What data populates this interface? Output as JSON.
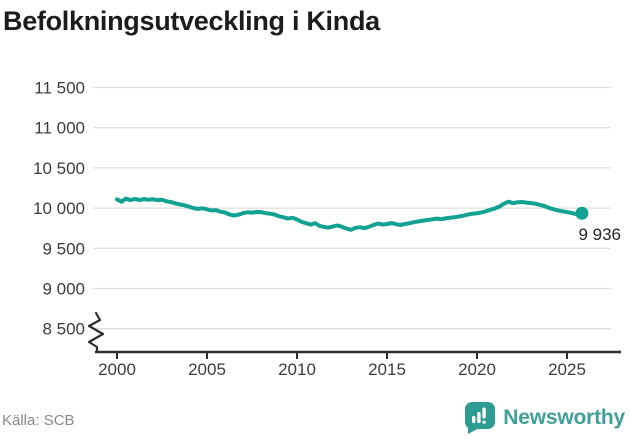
{
  "title": "Befolkningsutveckling i Kinda",
  "source": "Källa: SCB",
  "branding": {
    "name": "Newsworthy",
    "icon": "newsworthy-speech-bubble-bar-chart-icon",
    "wordmark_color": "#3F9F99",
    "icon_color": "#2F9C93"
  },
  "chart_data": {
    "type": "line",
    "title": "Befolkningsutveckling i Kinda",
    "xlabel": "",
    "ylabel": "",
    "grid": "horizontal",
    "axis_break_at_bottom": true,
    "line_color": "#12A294",
    "gridline_color": "#dedede",
    "axis_color": "#2e2e2e",
    "tick_label_color": "#3d3d3d",
    "end_label": "9 936",
    "end_value": 9936,
    "ylim": [
      8500,
      11500
    ],
    "xlim": [
      1998.7,
      2027.9
    ],
    "y_ticks": [
      11500,
      11000,
      10500,
      10000,
      9500,
      9000,
      8500
    ],
    "y_tick_labels": [
      "11 500",
      "11 000",
      "10 500",
      "10 000",
      "9 500",
      "9 000",
      "8 500"
    ],
    "x_ticks": [
      2000,
      2005,
      2010,
      2015,
      2020,
      2025
    ],
    "x_tick_labels": [
      "2000",
      "2005",
      "2010",
      "2015",
      "2020",
      "2025"
    ],
    "series": [
      {
        "name": "Befolkning i Kinda",
        "color": "#12A294",
        "x": [
          2000.0,
          2000.25,
          2000.5,
          2000.75,
          2001.0,
          2001.25,
          2001.5,
          2001.75,
          2002.0,
          2002.25,
          2002.5,
          2002.75,
          2003.0,
          2003.25,
          2003.5,
          2003.75,
          2004.0,
          2004.25,
          2004.5,
          2004.75,
          2005.0,
          2005.25,
          2005.5,
          2005.75,
          2006.0,
          2006.25,
          2006.5,
          2006.75,
          2007.0,
          2007.25,
          2007.5,
          2007.75,
          2008.0,
          2008.25,
          2008.5,
          2008.75,
          2009.0,
          2009.25,
          2009.5,
          2009.75,
          2010.0,
          2010.25,
          2010.5,
          2010.75,
          2011.0,
          2011.25,
          2011.5,
          2011.75,
          2012.0,
          2012.25,
          2012.5,
          2012.75,
          2013.0,
          2013.25,
          2013.5,
          2013.75,
          2014.0,
          2014.25,
          2014.5,
          2014.75,
          2015.0,
          2015.25,
          2015.5,
          2015.75,
          2016.0,
          2016.25,
          2016.5,
          2016.75,
          2017.0,
          2017.25,
          2017.5,
          2017.75,
          2018.0,
          2018.25,
          2018.5,
          2018.75,
          2019.0,
          2019.25,
          2019.5,
          2019.75,
          2020.0,
          2020.25,
          2020.5,
          2020.75,
          2021.0,
          2021.25,
          2021.5,
          2021.75,
          2022.0,
          2022.25,
          2022.5,
          2022.75,
          2023.0,
          2023.25,
          2023.5,
          2023.75,
          2024.0,
          2024.25,
          2024.5,
          2024.75,
          2025.0,
          2025.25,
          2025.5,
          2025.83
        ],
        "values": [
          10110,
          10080,
          10120,
          10100,
          10115,
          10100,
          10112,
          10105,
          10110,
          10098,
          10105,
          10085,
          10075,
          10058,
          10045,
          10035,
          10018,
          10000,
          9990,
          9998,
          9985,
          9970,
          9975,
          9955,
          9945,
          9920,
          9908,
          9918,
          9938,
          9948,
          9944,
          9952,
          9950,
          9938,
          9930,
          9920,
          9898,
          9885,
          9870,
          9880,
          9858,
          9830,
          9812,
          9795,
          9812,
          9780,
          9765,
          9758,
          9772,
          9785,
          9768,
          9745,
          9730,
          9755,
          9762,
          9750,
          9768,
          9790,
          9808,
          9795,
          9802,
          9815,
          9800,
          9790,
          9802,
          9812,
          9825,
          9835,
          9845,
          9852,
          9860,
          9870,
          9862,
          9872,
          9880,
          9886,
          9895,
          9906,
          9920,
          9930,
          9936,
          9945,
          9960,
          9980,
          9996,
          10020,
          10055,
          10080,
          10062,
          10072,
          10076,
          10068,
          10062,
          10055,
          10040,
          10025,
          10002,
          9986,
          9970,
          9960,
          9950,
          9940,
          9925,
          9936
        ]
      }
    ]
  }
}
